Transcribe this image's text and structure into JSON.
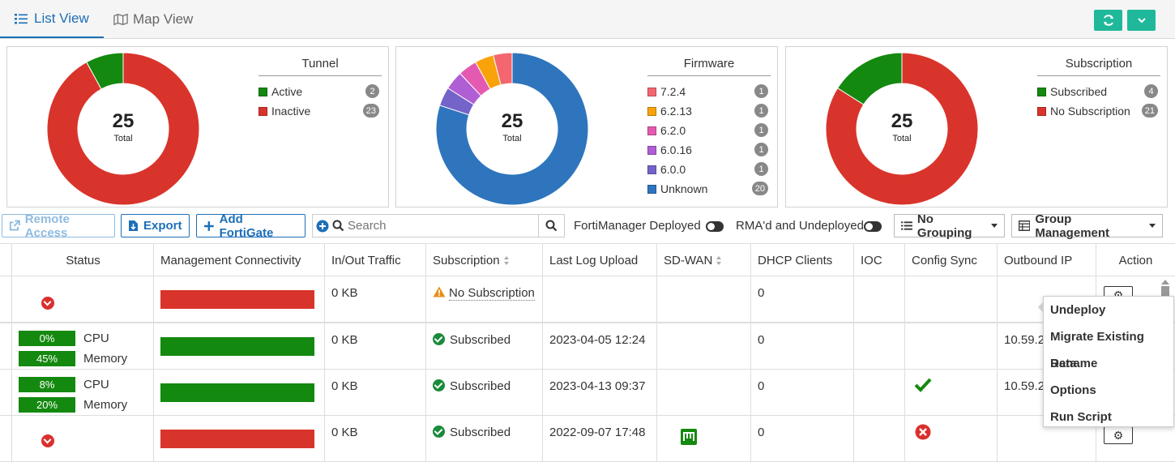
{
  "tabs": [
    {
      "label": "List View",
      "icon": "list-icon",
      "active": true
    },
    {
      "label": "Map View",
      "icon": "map-icon",
      "active": false
    }
  ],
  "header_buttons": {
    "refresh_icon": "refresh-icon",
    "menu_icon": "chevron-down-icon",
    "color": "#1fb89a"
  },
  "widgets": {
    "tunnel": {
      "title": "Tunnel",
      "total": "25",
      "total_label": "Total",
      "items": [
        {
          "label": "Active",
          "count": "2",
          "color": "#14890f"
        },
        {
          "label": "Inactive",
          "count": "23",
          "color": "#d9342b"
        }
      ]
    },
    "firmware": {
      "title": "Firmware",
      "total": "25",
      "total_label": "Total",
      "items": [
        {
          "label": "7.2.4",
          "count": "1",
          "color": "#f36670"
        },
        {
          "label": "6.2.13",
          "count": "1",
          "color": "#f9a30b"
        },
        {
          "label": "6.2.0",
          "count": "1",
          "color": "#e45ab0"
        },
        {
          "label": "6.0.16",
          "count": "1",
          "color": "#b05ed4"
        },
        {
          "label": "6.0.0",
          "count": "1",
          "color": "#7464c9"
        },
        {
          "label": "Unknown",
          "count": "20",
          "color": "#2e75bd"
        }
      ]
    },
    "subscription": {
      "title": "Subscription",
      "total": "25",
      "total_label": "Total",
      "items": [
        {
          "label": "Subscribed",
          "count": "4",
          "color": "#14890f"
        },
        {
          "label": "No Subscription",
          "count": "21",
          "color": "#d9342b"
        }
      ]
    }
  },
  "toolbar": {
    "remote_access": "Remote Access",
    "export": "Export",
    "add_fortigate": "Add FortiGate",
    "search_placeholder": "Search",
    "fortimanager_deployed": "FortiManager Deployed",
    "rma_undeployed": "RMA'd and Undeployed",
    "grouping": "No Grouping",
    "group_management": "Group Management"
  },
  "table": {
    "columns": [
      "Status",
      "Management Connectivity",
      "In/Out Traffic",
      "Subscription",
      "Last Log Upload",
      "SD-WAN",
      "DHCP Clients",
      "IOC",
      "Config Sync",
      "Outbound IP",
      "Action"
    ],
    "rows": [
      {
        "status": "down",
        "connectivity_color": "#d9342b",
        "traffic": "0 KB",
        "subscription": "No Subscription",
        "sub_icon": "warning-icon",
        "last_log": "",
        "sdwan": "",
        "dhcp": "0",
        "sync": "",
        "outbound": ""
      },
      {
        "status": "metrics",
        "cpu": "0%",
        "cpu_label": "CPU",
        "memory": "45%",
        "memory_label": "Memory",
        "connectivity_color": "#14890f",
        "traffic": "0 KB",
        "subscription": "Subscribed",
        "sub_icon": "check-circle-icon",
        "last_log": "2023-04-05 12:24",
        "sdwan": "",
        "dhcp": "0",
        "sync": "",
        "outbound": "10.59.2"
      },
      {
        "status": "metrics",
        "cpu": "8%",
        "cpu_label": "CPU",
        "memory": "20%",
        "memory_label": "Memory",
        "connectivity_color": "#14890f",
        "traffic": "0 KB",
        "subscription": "Subscribed",
        "sub_icon": "check-circle-icon",
        "last_log": "2023-04-13 09:37",
        "sdwan": "",
        "dhcp": "0",
        "sync": "ok",
        "outbound": "10.59.2"
      },
      {
        "status": "down",
        "connectivity_color": "#d9342b",
        "traffic": "0 KB",
        "subscription": "Subscribed",
        "sub_icon": "check-circle-icon",
        "last_log": "2022-09-07 17:48",
        "sdwan": "sdwan",
        "dhcp": "0",
        "sync": "error",
        "outbound": ""
      }
    ]
  },
  "action_menu": [
    "Undeploy",
    "Migrate Existing Data",
    "Rename",
    "Options",
    "Run Script"
  ]
}
